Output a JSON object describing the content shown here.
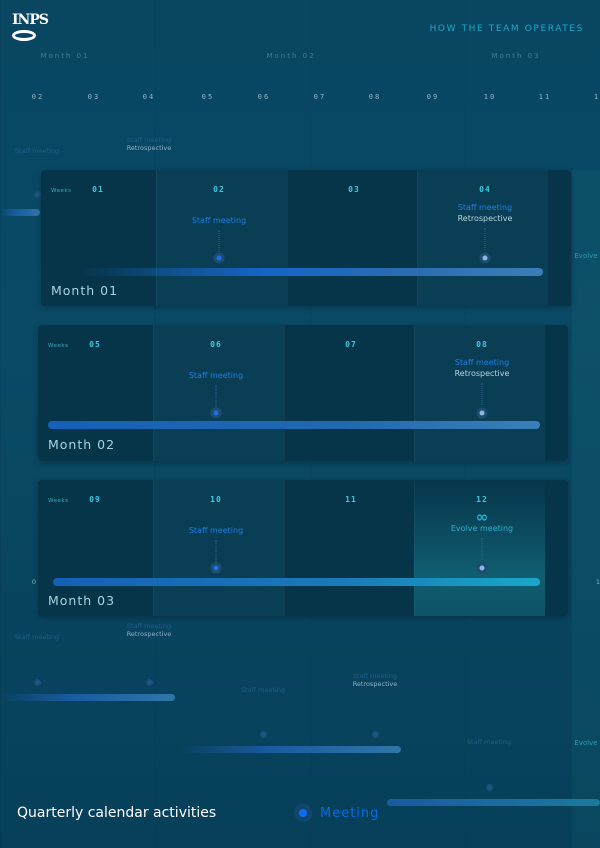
{
  "header": {
    "logo_text": "INPS",
    "title": "HOW THE TEAM OPERATES"
  },
  "background_timeline": {
    "months": [
      "Month 01",
      "Month 02",
      "Month 03"
    ],
    "weeks": [
      "02",
      "03",
      "04",
      "05",
      "06",
      "07",
      "08",
      "09",
      "10",
      "11",
      "1"
    ],
    "events": [
      {
        "top": "Staff meeting"
      },
      {
        "top": "Staff meeting",
        "bottom": "Retrospective"
      },
      {
        "top": "Staff meeting"
      },
      {
        "top": "Staff meeting",
        "bottom": "Retrospective"
      },
      {
        "top": "Staff meeting"
      },
      {
        "top": "Staff meeting",
        "bottom": "Retrospective"
      },
      {
        "top": "Staff meeting"
      },
      {
        "top": "Staff meeting",
        "bottom": "Retrospective"
      },
      {
        "top": "Staff meeting"
      },
      {
        "top": "Evolve"
      },
      {
        "top": "Evolve"
      }
    ],
    "edge_labels": [
      "0",
      "1"
    ]
  },
  "weeks_label": "Weeks",
  "cards": [
    {
      "month": "Month 01",
      "weeks": [
        "01",
        "02",
        "03",
        "04"
      ],
      "events": [
        {
          "week": 1,
          "top": "Staff meeting"
        },
        {
          "week": 3,
          "top": "Staff meeting",
          "bottom": "Retrospective"
        }
      ]
    },
    {
      "month": "Month 02",
      "weeks": [
        "05",
        "06",
        "07",
        "08"
      ],
      "events": [
        {
          "week": 1,
          "top": "Staff meeting"
        },
        {
          "week": 3,
          "top": "Staff meeting",
          "bottom": "Retrospective"
        }
      ]
    },
    {
      "month": "Month 03",
      "weeks": [
        "09",
        "10",
        "11",
        "12"
      ],
      "events": [
        {
          "week": 1,
          "top": "Staff meeting"
        },
        {
          "week": 3,
          "evolve": "Evolve meeting",
          "icon": "infinity-icon"
        }
      ]
    }
  ],
  "footer": {
    "title": "Quarterly calendar activities",
    "legend": "Meeting"
  },
  "colors": {
    "accent": "#1e7de0",
    "teal": "#3ec8e0",
    "bg": "#084662",
    "card": "#063549"
  }
}
